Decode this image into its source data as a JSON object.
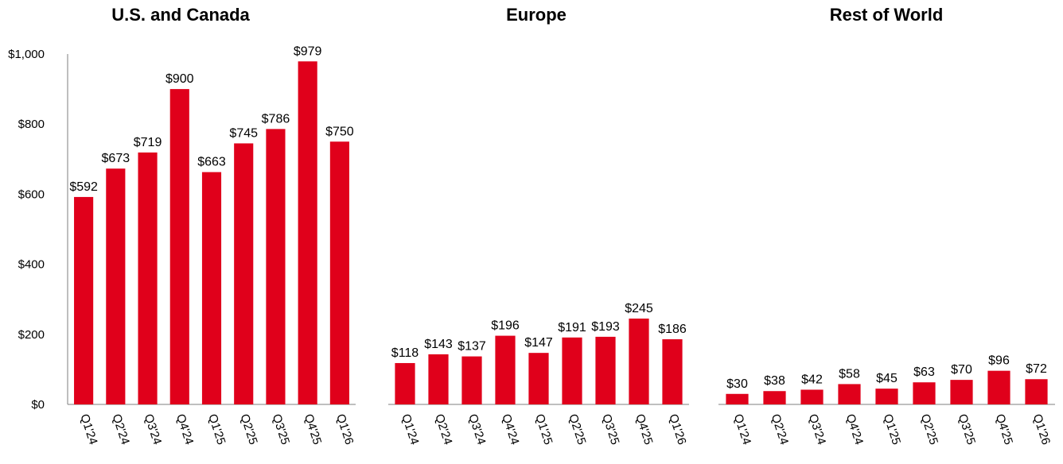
{
  "chart_data": [
    {
      "type": "bar",
      "title": "U.S. and Canada",
      "categories": [
        "Q1'24",
        "Q2'24",
        "Q3'24",
        "Q4'24",
        "Q1'25",
        "Q2'25",
        "Q3'25",
        "Q4'25",
        "Q1'26"
      ],
      "values": [
        592,
        673,
        719,
        900,
        663,
        745,
        786,
        979,
        750
      ],
      "value_labels": [
        "$592",
        "$673",
        "$719",
        "$900",
        "$663",
        "$745",
        "$786",
        "$979",
        "$750"
      ],
      "y_ticks": [
        "$0",
        "$200",
        "$400",
        "$600",
        "$800",
        "$1,000"
      ],
      "ylim": [
        0,
        1000
      ],
      "grid": false
    },
    {
      "type": "bar",
      "title": "Europe",
      "categories": [
        "Q1'24",
        "Q2'24",
        "Q3'24",
        "Q4'24",
        "Q1'25",
        "Q2'25",
        "Q3'25",
        "Q4'25",
        "Q1'26"
      ],
      "values": [
        118,
        143,
        137,
        196,
        147,
        191,
        193,
        245,
        186
      ],
      "value_labels": [
        "$118",
        "$143",
        "$137",
        "$196",
        "$147",
        "$191",
        "$193",
        "$245",
        "$186"
      ],
      "ylim": [
        0,
        1000
      ],
      "grid": false
    },
    {
      "type": "bar",
      "title": "Rest of World",
      "categories": [
        "Q1'24",
        "Q2'24",
        "Q3'24",
        "Q4'24",
        "Q1'25",
        "Q2'25",
        "Q3'25",
        "Q4'25",
        "Q1'26"
      ],
      "values": [
        30,
        38,
        42,
        58,
        45,
        63,
        70,
        96,
        72
      ],
      "value_labels": [
        "$30",
        "$38",
        "$42",
        "$58",
        "$45",
        "$63",
        "$70",
        "$96",
        "$72"
      ],
      "ylim": [
        0,
        1000
      ],
      "grid": false
    }
  ],
  "colors": {
    "bar": "#e0001b",
    "axis": "#7f7f7f",
    "text": "#000000"
  }
}
